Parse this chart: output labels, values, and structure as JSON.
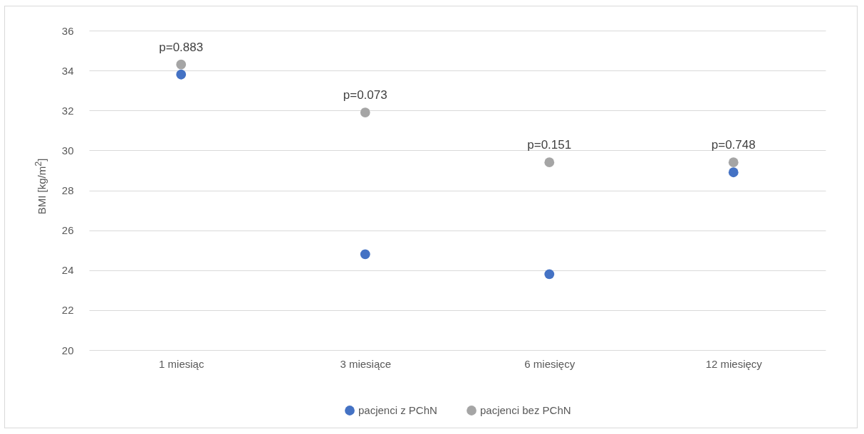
{
  "chart_data": {
    "type": "scatter",
    "ylabel": "BMI [kg/m$^{2}$]",
    "categories": [
      "1 miesiąc",
      "3 miesiące",
      "6 miesięcy",
      "12 miesięcy"
    ],
    "series": [
      {
        "name": "pacjenci z PChN",
        "color": "#4472c4",
        "values": [
          33.8,
          24.8,
          23.8,
          28.9
        ]
      },
      {
        "name": "pacjenci bez PChN",
        "color": "#a5a5a5",
        "values": [
          34.3,
          31.9,
          29.4,
          29.4
        ]
      }
    ],
    "annotations": [
      "p=0.883",
      "p=0.073",
      "p=0.151",
      "p=0.748"
    ],
    "ylim": [
      20,
      36
    ],
    "yticks": [
      20,
      22,
      24,
      26,
      28,
      30,
      32,
      34,
      36
    ],
    "grid": "y",
    "legend": "bottom",
    "marker": "circle"
  }
}
